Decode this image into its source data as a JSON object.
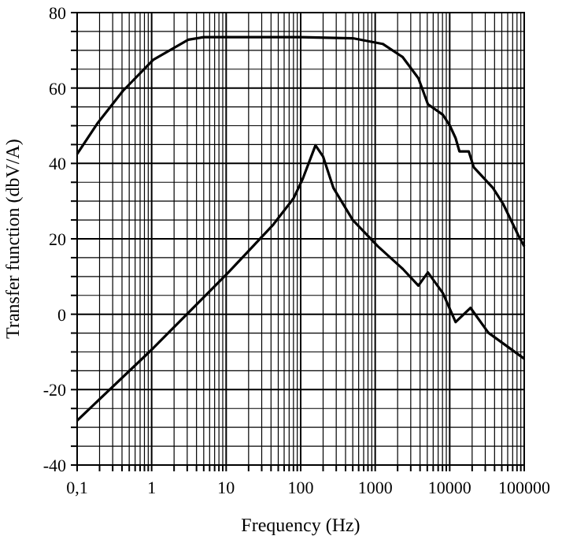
{
  "chart_data": {
    "type": "line",
    "xlabel": "Frequency (Hz)",
    "ylabel": "Transfer function (dbV/A)",
    "log": "x",
    "grid": true,
    "marker": "none",
    "line_style": "solid",
    "xlim": [
      0.1,
      100000
    ],
    "ylim": [
      -40,
      80
    ],
    "xticks": [
      {
        "value": 0.1,
        "label": "0,1"
      },
      {
        "value": 0.2,
        "label": null
      },
      {
        "value": 0.3,
        "label": null
      },
      {
        "value": 0.4,
        "label": null
      },
      {
        "value": 0.5,
        "label": null
      },
      {
        "value": 0.6,
        "label": null
      },
      {
        "value": 0.7,
        "label": null
      },
      {
        "value": 0.8,
        "label": null
      },
      {
        "value": 0.9,
        "label": null
      },
      1,
      {
        "value": 2,
        "label": null
      },
      {
        "value": 3,
        "label": null
      },
      {
        "value": 4,
        "label": null
      },
      {
        "value": 5,
        "label": null
      },
      {
        "value": 6,
        "label": null
      },
      {
        "value": 7,
        "label": null
      },
      {
        "value": 8,
        "label": null
      },
      {
        "value": 9,
        "label": null
      },
      10,
      {
        "value": 20,
        "label": null
      },
      {
        "value": 30,
        "label": null
      },
      {
        "value": 40,
        "label": null
      },
      {
        "value": 50,
        "label": null
      },
      {
        "value": 60,
        "label": null
      },
      {
        "value": 70,
        "label": null
      },
      {
        "value": 80,
        "label": null
      },
      {
        "value": 90,
        "label": null
      },
      100,
      {
        "value": 200,
        "label": null
      },
      {
        "value": 300,
        "label": null
      },
      {
        "value": 400,
        "label": null
      },
      {
        "value": 500,
        "label": null
      },
      {
        "value": 600,
        "label": null
      },
      {
        "value": 700,
        "label": null
      },
      {
        "value": 800,
        "label": null
      },
      {
        "value": 900,
        "label": null
      },
      1000,
      {
        "value": 2000,
        "label": null
      },
      {
        "value": 3000,
        "label": null
      },
      {
        "value": 4000,
        "label": null
      },
      {
        "value": 5000,
        "label": null
      },
      {
        "value": 6000,
        "label": null
      },
      {
        "value": 7000,
        "label": null
      },
      {
        "value": 8000,
        "label": null
      },
      {
        "value": 9000,
        "label": null
      },
      10000,
      {
        "value": 20000,
        "label": null
      },
      {
        "value": 30000,
        "label": null
      },
      {
        "value": 40000,
        "label": null
      },
      {
        "value": 50000,
        "label": null
      },
      {
        "value": 60000,
        "label": null
      },
      {
        "value": 70000,
        "label": null
      },
      {
        "value": 80000,
        "label": null
      },
      {
        "value": 90000,
        "label": null
      },
      100000
    ],
    "yticks": [
      -40,
      {
        "value": -35,
        "label": null
      },
      {
        "value": -30,
        "label": null
      },
      {
        "value": -25,
        "label": null
      },
      -20,
      {
        "value": -15,
        "label": null
      },
      {
        "value": -10,
        "label": null
      },
      {
        "value": -5,
        "label": null
      },
      0,
      {
        "value": 5,
        "label": null
      },
      {
        "value": 10,
        "label": null
      },
      {
        "value": 15,
        "label": null
      },
      20,
      {
        "value": 25,
        "label": null
      },
      {
        "value": 30,
        "label": null
      },
      {
        "value": 35,
        "label": null
      },
      40,
      {
        "value": 45,
        "label": null
      },
      {
        "value": 50,
        "label": null
      },
      {
        "value": 55,
        "label": null
      },
      60,
      {
        "value": 65,
        "label": null
      },
      {
        "value": 70,
        "label": null
      },
      {
        "value": 75,
        "label": null
      },
      80
    ],
    "series": [
      {
        "color": "#000000",
        "x": [
          0.1,
          0.19,
          0.41,
          1.05,
          3.1,
          5,
          100,
          500,
          1260,
          2340,
          3800,
          5100,
          8100,
          10000,
          12000,
          13500,
          18000,
          21000,
          38000,
          52000,
          83000,
          100000
        ],
        "values": [
          42.5,
          50.8,
          59.2,
          67.5,
          72.8,
          73.5,
          73.5,
          73.2,
          71.7,
          68.2,
          62.6,
          55.7,
          52.9,
          50.1,
          46.7,
          43.2,
          43.2,
          39,
          33.5,
          29.3,
          21,
          18
        ]
      },
      {
        "color": "#000000",
        "x": [
          0.1,
          1.05,
          10.7,
          20,
          43,
          80,
          107,
          158,
          200,
          275,
          500,
          1090,
          2350,
          3800,
          5100,
          8100,
          12000,
          19000,
          33000,
          100000
        ],
        "values": [
          -28.2,
          -9,
          11.1,
          16.8,
          23.8,
          30.7,
          36,
          44.8,
          41.8,
          33.5,
          25,
          18,
          12,
          7.6,
          11.1,
          5.6,
          -2.1,
          1.7,
          -4.9,
          -11.8
        ]
      }
    ]
  }
}
